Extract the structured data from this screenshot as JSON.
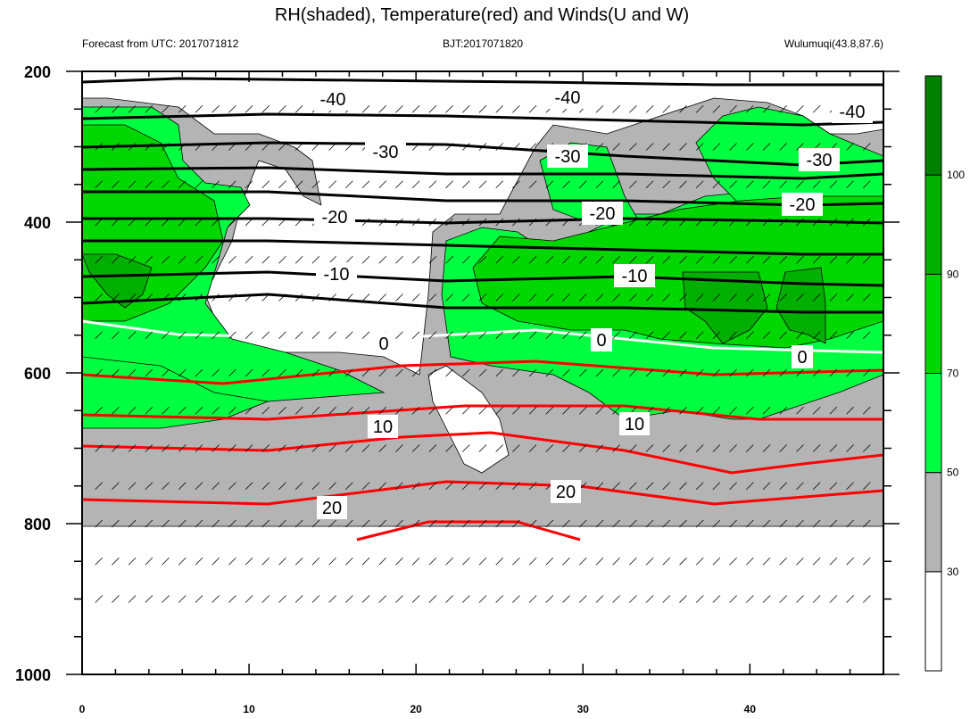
{
  "chart_data": {
    "type": "contour",
    "title": "RH(shaded), Temperature(red) and Winds(U and W)",
    "subtitle_left": "Forecast from UTC: 2017071812",
    "subtitle_center": "BJT:2017071820",
    "subtitle_right": "Wulumuqi(43.8,87.6)",
    "x_axis": {
      "range": [
        0,
        48
      ],
      "ticks": [
        0,
        10,
        20,
        30,
        40
      ],
      "minor_step": 2
    },
    "y_axis": {
      "range": [
        200,
        1000
      ],
      "inverted": true,
      "ticks": [
        200,
        400,
        600,
        800,
        1000
      ],
      "minor_step": 50
    },
    "colorbar": {
      "levels": [
        30,
        50,
        70,
        90,
        100
      ],
      "colors": [
        "#ffffff",
        "#b4b4b4",
        "#00ff41",
        "#00d700",
        "#00af00",
        "#008200"
      ],
      "labels": [
        "30",
        "50",
        "70",
        "90",
        "100"
      ]
    },
    "temperature_contours": [
      {
        "value": -40,
        "color": "#000000",
        "labels": [
          "-40",
          "-40",
          "-40"
        ]
      },
      {
        "value": -30,
        "color": "#000000",
        "labels": [
          "-30",
          "-30",
          "-30"
        ]
      },
      {
        "value": -20,
        "color": "#000000",
        "labels": [
          "-20",
          "-20",
          "-20"
        ]
      },
      {
        "value": -10,
        "color": "#000000",
        "labels": [
          "-10",
          "-10"
        ]
      },
      {
        "value": 0,
        "color": "#ffffff",
        "labels": [
          "0",
          "0",
          "0"
        ]
      },
      {
        "value": 10,
        "color": "#ff0000",
        "labels": [
          "10",
          "10"
        ]
      },
      {
        "value": 20,
        "color": "#ff0000",
        "labels": [
          "20",
          "20"
        ]
      }
    ],
    "winds": "barbs at every forecast hour and pressure level from 250 to 900 hPa"
  }
}
